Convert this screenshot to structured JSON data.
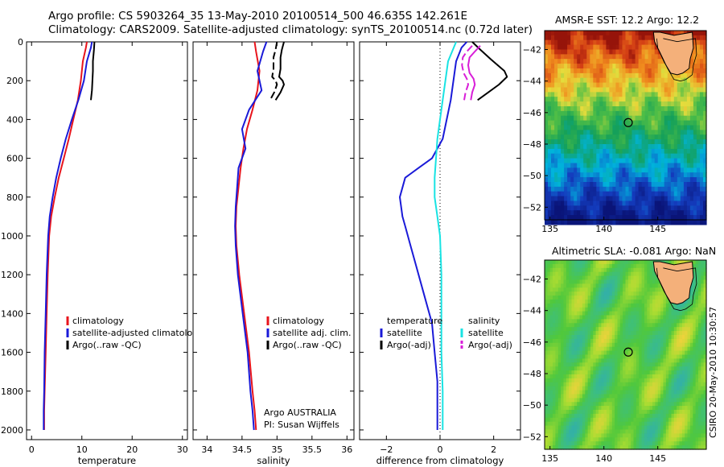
{
  "header": {
    "line1": "Argo profile: CS 5903264_35 13-May-2010 20100514_500 46.635S 142.261E",
    "line2": "Climatology: CARS2009. Satellite-adjusted climatology: synTS_20100514.nc (0.72d later)"
  },
  "footer_stamp": "CSIRO 20-May-2010 10:30:57",
  "colors": {
    "climatology": "#e8141c",
    "satellite": "#1a1ad8",
    "argo": "#000000",
    "salinity_satellite": "#19e3e3",
    "salinity_argo": "#d81ed8"
  },
  "chart_data": [
    {
      "type": "line",
      "panel": "temperature",
      "xlabel": "temperature",
      "ylabel": "",
      "xlim": [
        -1,
        31
      ],
      "ylim": [
        2050,
        0
      ],
      "xticks": [
        0,
        10,
        20,
        30
      ],
      "yticks": [
        0,
        200,
        400,
        600,
        800,
        1000,
        1200,
        1400,
        1600,
        1800,
        2000
      ],
      "legend": [
        "climatology",
        "satellite-adjusted climatology",
        "Argo(..raw -QC)"
      ],
      "series": [
        {
          "name": "climatology",
          "color": "climatology",
          "x": [
            11.0,
            10.8,
            10.2,
            9.8,
            9.2,
            8.3,
            7.4,
            6.4,
            5.4,
            4.6,
            3.9,
            3.5,
            3.2,
            3.0,
            2.8,
            2.6,
            2.5,
            2.5
          ],
          "y": [
            0,
            30,
            100,
            200,
            300,
            400,
            500,
            600,
            700,
            800,
            900,
            1000,
            1200,
            1400,
            1600,
            1800,
            1900,
            2000
          ]
        },
        {
          "name": "satellite-adjusted climatology",
          "color": "satellite",
          "x": [
            12.0,
            11.8,
            11.0,
            10.4,
            9.3,
            8.0,
            6.8,
            5.8,
            4.9,
            4.2,
            3.6,
            3.3,
            3.0,
            2.8,
            2.6,
            2.5,
            2.4,
            2.4
          ],
          "y": [
            0,
            30,
            100,
            200,
            300,
            400,
            500,
            600,
            700,
            800,
            900,
            1000,
            1200,
            1400,
            1600,
            1800,
            1900,
            2000
          ]
        },
        {
          "name": "Argo(..raw -QC)",
          "color": "argo",
          "x": [
            12.5,
            12.4,
            12.2,
            12.2,
            12.1,
            12.0,
            11.8
          ],
          "y": [
            0,
            40,
            100,
            150,
            200,
            250,
            300
          ]
        }
      ]
    },
    {
      "type": "line",
      "panel": "salinity",
      "xlabel": "salinity",
      "ylabel": "",
      "xlim": [
        33.8,
        36.1
      ],
      "ylim": [
        2050,
        0
      ],
      "xticks": [
        34,
        34.5,
        35,
        35.5,
        36
      ],
      "yticks": [
        0,
        200,
        400,
        600,
        800,
        1000,
        1200,
        1400,
        1600,
        1800,
        2000
      ],
      "legend": [
        "climatology",
        "satellite adj. clim.",
        "Argo(..raw -QC)"
      ],
      "annotation_lines": [
        "Argo AUSTRALIA",
        "PI: Susan Wijffels"
      ],
      "series": [
        {
          "name": "climatology",
          "color": "climatology",
          "x": [
            34.68,
            34.7,
            34.75,
            34.72,
            34.65,
            34.57,
            34.52,
            34.48,
            34.45,
            34.42,
            34.41,
            34.42,
            34.46,
            34.53,
            34.6,
            34.65,
            34.68,
            34.7
          ],
          "y": [
            0,
            50,
            150,
            250,
            350,
            450,
            550,
            650,
            750,
            850,
            950,
            1050,
            1200,
            1400,
            1600,
            1800,
            1900,
            2000
          ]
        },
        {
          "name": "satellite adj. clim.",
          "color": "satellite",
          "x": [
            34.85,
            34.8,
            34.72,
            34.78,
            34.6,
            34.5,
            34.55,
            34.45,
            34.43,
            34.41,
            34.4,
            34.41,
            34.44,
            34.51,
            34.58,
            34.62,
            34.65,
            34.67
          ],
          "y": [
            0,
            50,
            150,
            250,
            350,
            450,
            550,
            650,
            750,
            850,
            950,
            1050,
            1200,
            1400,
            1600,
            1800,
            1900,
            2000
          ]
        },
        {
          "name": "Argo(..raw -QC)",
          "color": "argo",
          "x": [
            35.1,
            35.07,
            35.05,
            35.05,
            35.03,
            35.08,
            35.1,
            35.05,
            34.98
          ],
          "y": [
            0,
            40,
            80,
            140,
            180,
            200,
            220,
            260,
            300
          ]
        },
        {
          "name": "Argo(..raw -QC) offset",
          "color": "argo",
          "dashed": true,
          "x": [
            35.0,
            34.98,
            34.95,
            34.95,
            34.93,
            34.98,
            35.0,
            34.96,
            34.9
          ],
          "y": [
            0,
            40,
            80,
            140,
            180,
            200,
            220,
            260,
            300
          ]
        }
      ]
    },
    {
      "type": "line",
      "panel": "difference",
      "xlabel": "difference from climatology",
      "ylabel": "",
      "xlim": [
        -3,
        3
      ],
      "ylim": [
        2050,
        0
      ],
      "xticks": [
        -2,
        0,
        2
      ],
      "yticks": [
        0,
        200,
        400,
        600,
        800,
        1000,
        1200,
        1400,
        1600,
        1800,
        2000
      ],
      "legend_temperature": [
        "temperature",
        "satellite",
        "Argo(-adj)"
      ],
      "legend_salinity": [
        "salinity",
        "satellite",
        "Argo(-adj)"
      ],
      "series": [
        {
          "name": "temperature satellite",
          "color": "satellite",
          "x": [
            1.0,
            0.8,
            0.6,
            0.4,
            0.1,
            -0.3,
            -0.8,
            -1.3,
            -1.5,
            -1.4,
            -1.3,
            -1.1,
            -0.9,
            -0.6,
            -0.3,
            -0.2,
            -0.1,
            -0.1,
            -0.1
          ],
          "y": [
            0,
            30,
            100,
            300,
            500,
            600,
            650,
            700,
            800,
            900,
            950,
            1050,
            1150,
            1300,
            1450,
            1600,
            1750,
            1900,
            2000
          ]
        },
        {
          "name": "salinity satellite",
          "color": "salinity_satellite",
          "x": [
            0.6,
            0.3,
            0.1,
            -0.1,
            -0.2,
            -0.2,
            -0.1,
            0.0,
            0.05,
            0.05,
            0.05,
            0.1,
            0.1
          ],
          "y": [
            0,
            100,
            300,
            500,
            700,
            800,
            900,
            1000,
            1200,
            1400,
            1600,
            1800,
            2000
          ]
        },
        {
          "name": "temperature Argo(-adj)",
          "color": "argo",
          "x": [
            1.2,
            1.5,
            1.9,
            2.4,
            2.5,
            2.2,
            1.8,
            1.4
          ],
          "y": [
            0,
            40,
            90,
            150,
            180,
            220,
            260,
            300
          ]
        },
        {
          "name": "salinity Argo(-adj)",
          "color": "salinity_argo",
          "x": [
            1.5,
            1.3,
            1.1,
            1.05,
            1.1,
            1.25,
            1.3,
            1.2,
            1.15
          ],
          "y": [
            20,
            50,
            80,
            120,
            160,
            190,
            220,
            260,
            300
          ]
        },
        {
          "name": "salinity Argo(-adj) offset",
          "color": "salinity_argo",
          "dashed": true,
          "x": [
            1.2,
            1.0,
            0.85,
            0.82,
            0.88,
            1.0,
            1.05,
            0.95,
            0.9
          ],
          "y": [
            20,
            50,
            80,
            120,
            160,
            190,
            220,
            260,
            300
          ]
        }
      ]
    },
    {
      "type": "heatmap",
      "panel": "map1",
      "title": "AMSR-E SST: 12.2 Argo: 12.2",
      "xlim": [
        134.5,
        149.5
      ],
      "ylim": [
        -52.8,
        -40.8
      ],
      "xticks": [
        135,
        140,
        145
      ],
      "yticks": [
        -42,
        -44,
        -46,
        -48,
        -50,
        -52
      ],
      "profile_location": {
        "lon": 142.261,
        "lat": -46.635
      },
      "field": "sst"
    },
    {
      "type": "heatmap",
      "panel": "map2",
      "title": "Altimetric SLA: -0.081 Argo: NaN",
      "xlim": [
        134.5,
        149.5
      ],
      "ylim": [
        -52.8,
        -40.8
      ],
      "xticks": [
        135,
        140,
        145
      ],
      "yticks": [
        -42,
        -44,
        -46,
        -48,
        -50,
        -52
      ],
      "profile_location": {
        "lon": 142.261,
        "lat": -46.635
      },
      "field": "sla"
    }
  ]
}
